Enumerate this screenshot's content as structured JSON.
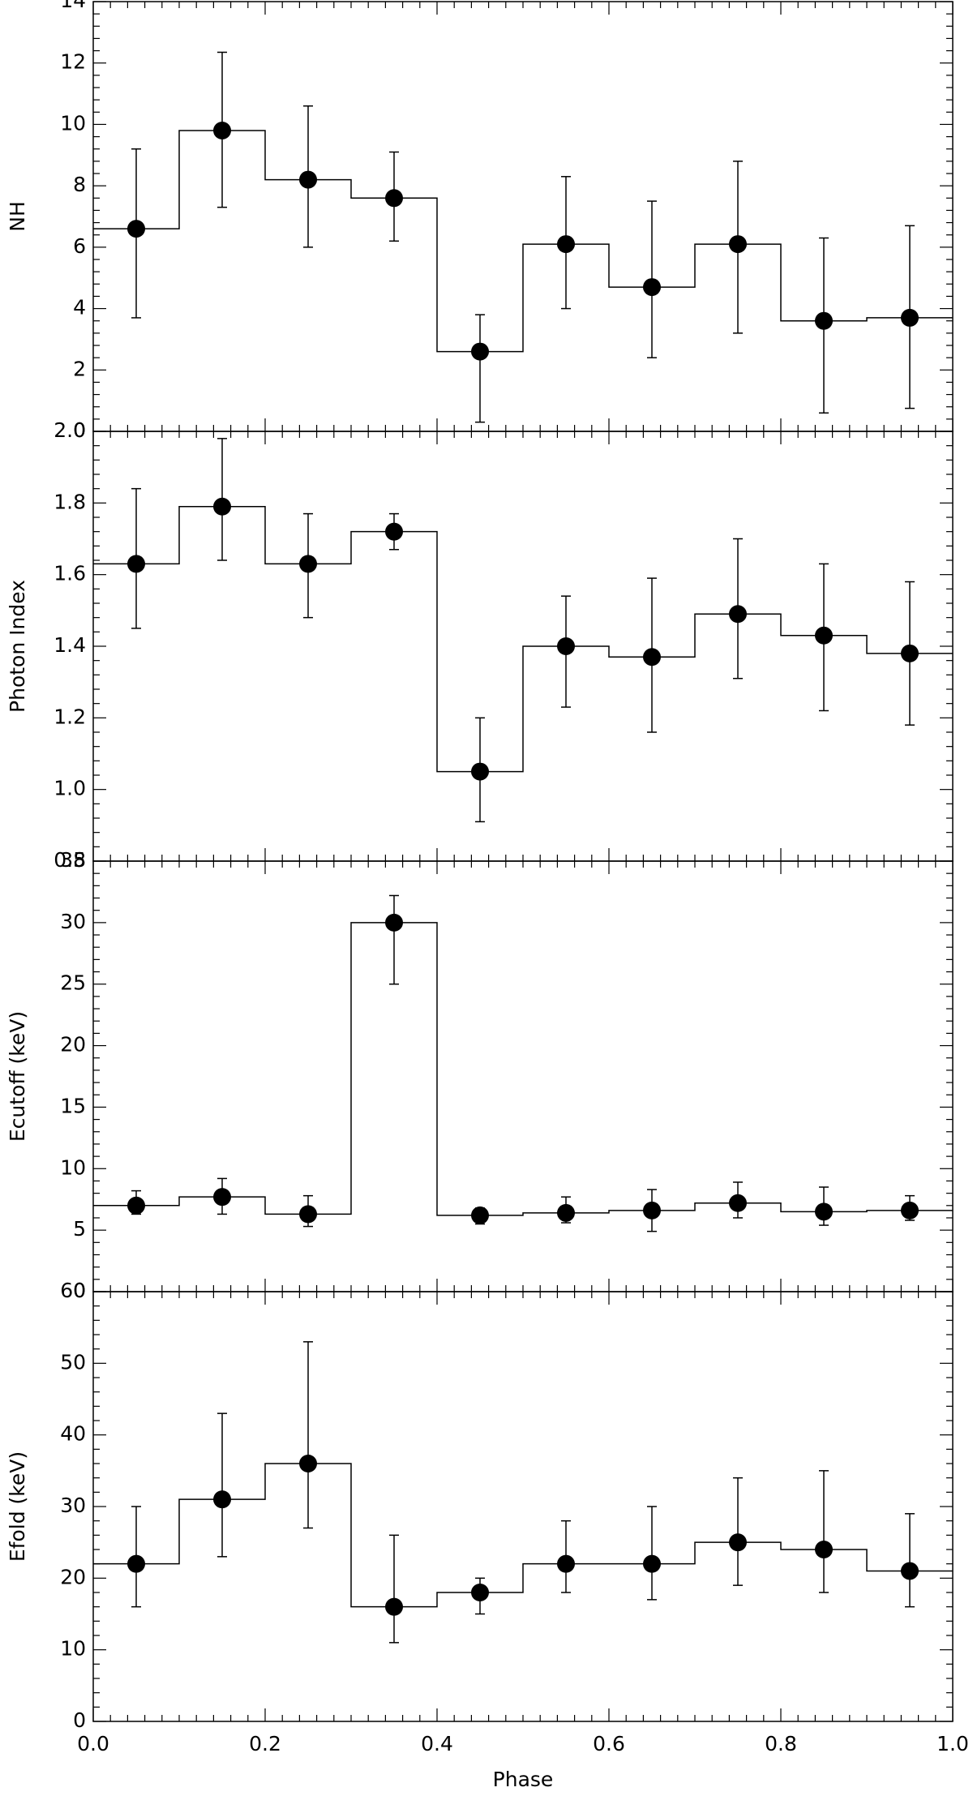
{
  "figure": {
    "xlabel": "Phase",
    "x_tick_labels": [
      "0.0",
      "0.2",
      "0.4",
      "0.6",
      "0.8",
      "1.0"
    ]
  },
  "chart_data": [
    {
      "type": "scatter",
      "panel": "nh",
      "ylabel": "NH",
      "xlim": [
        0,
        1
      ],
      "ylim": [
        0,
        14
      ],
      "y_ticks": [
        0,
        2,
        4,
        6,
        8,
        10,
        12,
        14
      ],
      "y_tick_labels": [
        "0",
        "2",
        "4",
        "6",
        "8",
        "10",
        "12",
        "14"
      ],
      "x": [
        0.05,
        0.15,
        0.25,
        0.35,
        0.45,
        0.55,
        0.65,
        0.75,
        0.85,
        0.95
      ],
      "y": [
        6.6,
        9.8,
        8.2,
        7.6,
        2.6,
        6.1,
        4.7,
        6.1,
        3.6,
        3.7
      ],
      "y_err_low": [
        3.7,
        7.3,
        6.0,
        6.2,
        0.3,
        4.0,
        2.4,
        3.2,
        0.6,
        0.75
      ],
      "y_err_high": [
        9.2,
        12.35,
        10.6,
        9.1,
        3.8,
        8.3,
        7.5,
        8.8,
        6.3,
        6.7
      ],
      "histogram_step": true,
      "grid": false
    },
    {
      "type": "scatter",
      "panel": "photon-index",
      "ylabel": "Photon Index",
      "xlim": [
        0,
        1
      ],
      "ylim": [
        0.8,
        2.0
      ],
      "y_ticks": [
        0.8,
        1.0,
        1.2,
        1.4,
        1.6,
        1.8,
        2.0
      ],
      "y_tick_labels": [
        "0.8",
        "1.0",
        "1.2",
        "1.4",
        "1.6",
        "1.8",
        "2.0"
      ],
      "x": [
        0.05,
        0.15,
        0.25,
        0.35,
        0.45,
        0.55,
        0.65,
        0.75,
        0.85,
        0.95
      ],
      "y": [
        1.63,
        1.79,
        1.63,
        1.72,
        1.05,
        1.4,
        1.37,
        1.49,
        1.43,
        1.38
      ],
      "y_err_low": [
        1.45,
        1.64,
        1.48,
        1.67,
        0.91,
        1.23,
        1.16,
        1.31,
        1.22,
        1.18
      ],
      "y_err_high": [
        1.84,
        1.98,
        1.77,
        1.77,
        1.2,
        1.54,
        1.59,
        1.7,
        1.63,
        1.58
      ],
      "histogram_step": true,
      "grid": false
    },
    {
      "type": "scatter",
      "panel": "ecutoff",
      "ylabel": "Ecutoff (keV)",
      "xlim": [
        0,
        1
      ],
      "ylim": [
        0,
        35
      ],
      "y_ticks": [
        0,
        5,
        10,
        15,
        20,
        25,
        30,
        35
      ],
      "y_tick_labels": [
        "0",
        "5",
        "10",
        "15",
        "20",
        "25",
        "30",
        "35"
      ],
      "x": [
        0.05,
        0.15,
        0.25,
        0.35,
        0.45,
        0.55,
        0.65,
        0.75,
        0.85,
        0.95
      ],
      "y": [
        7.0,
        7.7,
        6.3,
        30.0,
        6.2,
        6.4,
        6.6,
        7.2,
        6.5,
        6.6
      ],
      "y_err_low": [
        6.3,
        6.3,
        5.3,
        25.0,
        5.5,
        5.6,
        4.9,
        6.0,
        5.4,
        5.8
      ],
      "y_err_high": [
        8.2,
        9.2,
        7.8,
        32.2,
        6.8,
        7.7,
        8.3,
        8.9,
        8.5,
        7.8
      ],
      "histogram_step": true,
      "grid": false
    },
    {
      "type": "scatter",
      "panel": "efold",
      "ylabel": "Efold (keV)",
      "xlim": [
        0,
        1
      ],
      "ylim": [
        0,
        60
      ],
      "y_ticks": [
        0,
        10,
        20,
        30,
        40,
        50,
        60
      ],
      "y_tick_labels": [
        "0",
        "10",
        "20",
        "30",
        "40",
        "50",
        "60"
      ],
      "x": [
        0.05,
        0.15,
        0.25,
        0.35,
        0.45,
        0.55,
        0.65,
        0.75,
        0.85,
        0.95
      ],
      "y": [
        22,
        31,
        36,
        16,
        18,
        22,
        22,
        25,
        24,
        21
      ],
      "y_err_low": [
        16,
        23,
        27,
        11,
        15,
        18,
        17,
        19,
        18,
        16
      ],
      "y_err_high": [
        30,
        43,
        53,
        26,
        20,
        28,
        30,
        34,
        35,
        29
      ],
      "histogram_step": true,
      "grid": false
    }
  ]
}
